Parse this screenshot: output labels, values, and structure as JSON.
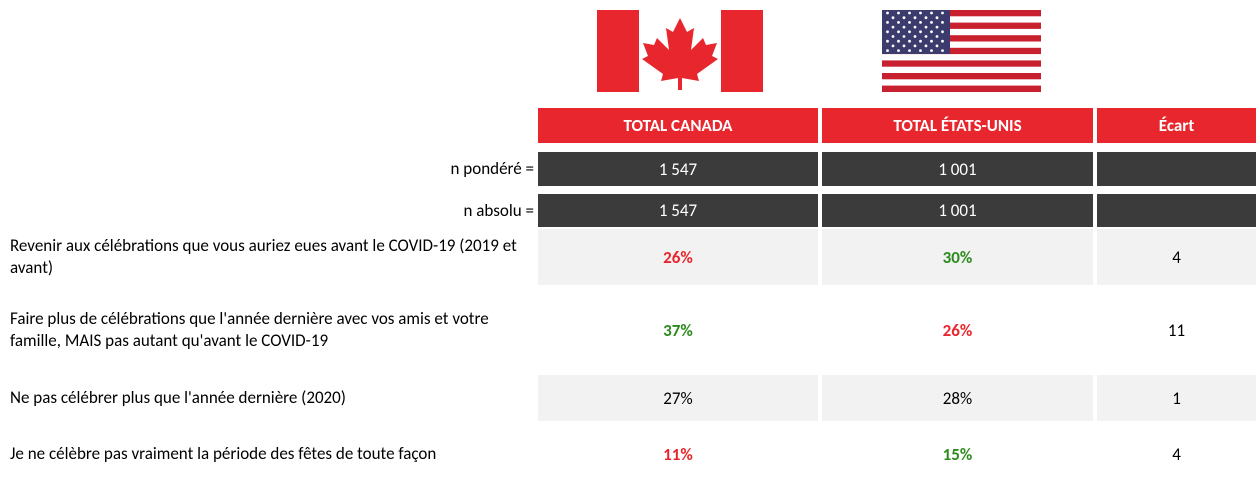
{
  "header": {
    "columns": [
      "TOTAL CANADA",
      "TOTAL ÉTATS-UNIS",
      "Écart"
    ],
    "color": "#e8262d"
  },
  "table": {
    "rows": [
      {
        "label": "n pondéré =",
        "style": "dark",
        "cells": [
          {
            "text": "1 547"
          },
          {
            "text": "1 001"
          }
        ]
      },
      {
        "label": "n absolu =",
        "style": "dark",
        "cells": [
          {
            "text": "1 547"
          },
          {
            "text": "1 001"
          }
        ]
      },
      {
        "label": "Revenir aux célébrations que vous auriez eues avant le COVID-19 (2019 et avant)",
        "style": "shaded",
        "cells": [
          {
            "text": "26%",
            "color": "#e8262d"
          },
          {
            "text": "30%",
            "color": "#2e8b1e"
          },
          {
            "text": "4"
          }
        ]
      },
      {
        "label": "Faire plus de célébrations que l'année dernière avec vos amis et votre famille, MAIS pas autant qu'avant le COVID-19",
        "style": "plain",
        "cells": [
          {
            "text": "37%",
            "color": "#2e8b1e"
          },
          {
            "text": "26%",
            "color": "#e8262d"
          },
          {
            "text": "11"
          }
        ]
      },
      {
        "label": "Ne pas célébrer plus que l'année dernière (2020)",
        "style": "shaded",
        "cells": [
          {
            "text": "27%"
          },
          {
            "text": "28%"
          },
          {
            "text": "1"
          }
        ]
      },
      {
        "label": "Je ne célèbre pas vraiment la période des fêtes de toute façon",
        "style": "plain",
        "cells": [
          {
            "text": "11%",
            "color": "#e8262d"
          },
          {
            "text": "15%",
            "color": "#2e8b1e"
          },
          {
            "text": "4"
          }
        ]
      }
    ]
  }
}
